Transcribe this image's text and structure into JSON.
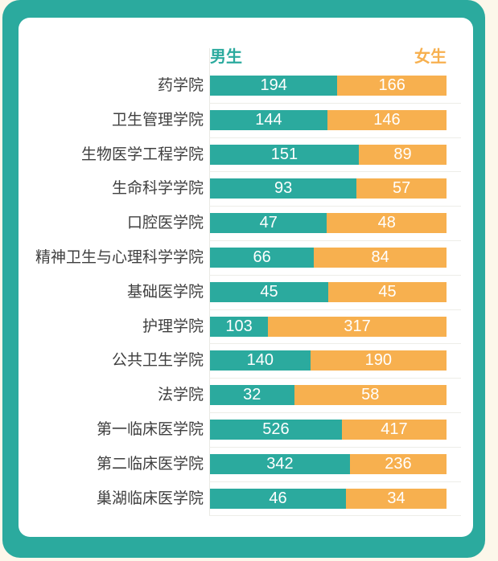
{
  "chart_data": {
    "type": "bar",
    "variant": "horizontal-100pct-stacked",
    "title": "",
    "xlabel": "",
    "ylabel": "",
    "legend_position": "top",
    "grid": "subtle-horizontal",
    "value_labels": "inside-white",
    "categories": [
      "药学院",
      "卫生管理学院",
      "生物医学工程学院",
      "生命科学学院",
      "口腔医学院",
      "精神卫生与心理科学学院",
      "基础医学院",
      "护理学院",
      "公共卫生学院",
      "法学院",
      "第一临床医学院",
      "第二临床医学院",
      "巢湖临床医学院"
    ],
    "series": [
      {
        "name": "男生",
        "color": "#2BAA9E",
        "values": [
          194,
          144,
          151,
          93,
          47,
          66,
          45,
          103,
          140,
          32,
          526,
          342,
          46
        ]
      },
      {
        "name": "女生",
        "color": "#F7B04F",
        "values": [
          166,
          146,
          89,
          57,
          48,
          84,
          45,
          317,
          190,
          58,
          417,
          236,
          34
        ]
      }
    ]
  },
  "theme": {
    "background": "#FCF7EA",
    "frame_color": "#2BAA9E",
    "card_color": "#FFFFFF",
    "label_color": "#3F3F3F",
    "gridline_color": "#EDEDE8",
    "value_text_color": "#FFFFFF"
  }
}
